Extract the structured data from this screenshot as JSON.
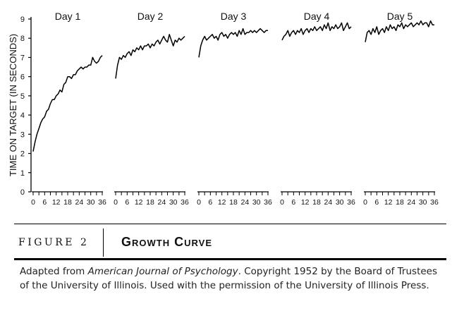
{
  "chart_data": {
    "type": "line",
    "ylabel": "TIME ON TARGET (IN SECONDS)",
    "ylim": [
      0,
      9
    ],
    "yticks": [
      "0",
      "1",
      "2",
      "3",
      "4",
      "5",
      "6",
      "7",
      "8",
      "9"
    ],
    "xticks": [
      "0",
      "6",
      "12",
      "18",
      "24",
      "30",
      "36"
    ],
    "panels": [
      {
        "title": "Day 1",
        "x": [
          0,
          1,
          2,
          3,
          4,
          5,
          6,
          7,
          8,
          9,
          10,
          11,
          12,
          13,
          14,
          15,
          16,
          17,
          18,
          19,
          20,
          21,
          22,
          23,
          24,
          25,
          26,
          27,
          28,
          29,
          30,
          31,
          32,
          33,
          34,
          35,
          36
        ],
        "values": [
          2.1,
          2.6,
          3.0,
          3.3,
          3.6,
          3.8,
          3.9,
          4.2,
          4.3,
          4.6,
          4.8,
          4.8,
          5.0,
          5.1,
          5.3,
          5.2,
          5.6,
          5.7,
          6.0,
          6.0,
          5.9,
          6.1,
          6.1,
          6.3,
          6.4,
          6.5,
          6.4,
          6.5,
          6.5,
          6.6,
          6.6,
          7.0,
          6.8,
          6.7,
          6.8,
          7.0,
          7.1
        ]
      },
      {
        "title": "Day 2",
        "x": [
          0,
          1,
          2,
          3,
          4,
          5,
          6,
          7,
          8,
          9,
          10,
          11,
          12,
          13,
          14,
          15,
          16,
          17,
          18,
          19,
          20,
          21,
          22,
          23,
          24,
          25,
          26,
          27,
          28,
          29,
          30,
          31,
          32,
          33,
          34,
          35,
          36
        ],
        "values": [
          5.9,
          6.6,
          7.0,
          6.9,
          7.1,
          7.0,
          7.2,
          7.3,
          7.1,
          7.4,
          7.3,
          7.5,
          7.4,
          7.6,
          7.4,
          7.6,
          7.6,
          7.7,
          7.5,
          7.7,
          7.6,
          7.8,
          7.9,
          7.7,
          7.9,
          8.1,
          7.9,
          7.8,
          8.2,
          7.9,
          7.6,
          7.9,
          7.8,
          8.0,
          7.9,
          8.0,
          8.1
        ]
      },
      {
        "title": "Day 3",
        "x": [
          0,
          1,
          2,
          3,
          4,
          5,
          6,
          7,
          8,
          9,
          10,
          11,
          12,
          13,
          14,
          15,
          16,
          17,
          18,
          19,
          20,
          21,
          22,
          23,
          24,
          25,
          26,
          27,
          28,
          29,
          30,
          31,
          32,
          33,
          34,
          35,
          36
        ],
        "values": [
          7.0,
          7.6,
          7.9,
          8.1,
          7.9,
          8.0,
          8.1,
          8.2,
          8.0,
          8.1,
          7.9,
          8.2,
          8.3,
          8.1,
          8.2,
          8.0,
          8.2,
          8.3,
          8.2,
          8.3,
          8.1,
          8.4,
          8.2,
          8.5,
          8.2,
          8.3,
          8.3,
          8.4,
          8.3,
          8.4,
          8.3,
          8.4,
          8.5,
          8.4,
          8.3,
          8.4,
          8.4
        ]
      },
      {
        "title": "Day 4",
        "x": [
          0,
          1,
          2,
          3,
          4,
          5,
          6,
          7,
          8,
          9,
          10,
          11,
          12,
          13,
          14,
          15,
          16,
          17,
          18,
          19,
          20,
          21,
          22,
          23,
          24,
          25,
          26,
          27,
          28,
          29,
          30,
          31,
          32,
          33,
          34,
          35,
          36
        ],
        "values": [
          7.9,
          8.1,
          8.2,
          8.4,
          8.1,
          8.3,
          8.4,
          8.2,
          8.4,
          8.3,
          8.5,
          8.2,
          8.4,
          8.5,
          8.3,
          8.5,
          8.4,
          8.6,
          8.4,
          8.5,
          8.6,
          8.4,
          8.7,
          8.5,
          8.8,
          8.4,
          8.6,
          8.5,
          8.7,
          8.5,
          8.6,
          8.8,
          8.4,
          8.6,
          8.8,
          8.5,
          8.6
        ]
      },
      {
        "title": "Day 5",
        "x": [
          0,
          1,
          2,
          3,
          4,
          5,
          6,
          7,
          8,
          9,
          10,
          11,
          12,
          13,
          14,
          15,
          16,
          17,
          18,
          19,
          20,
          21,
          22,
          23,
          24,
          25,
          26,
          27,
          28,
          29,
          30,
          31,
          32,
          33,
          34,
          35,
          36
        ],
        "values": [
          7.8,
          8.3,
          8.4,
          8.2,
          8.5,
          8.3,
          8.6,
          8.2,
          8.4,
          8.5,
          8.3,
          8.6,
          8.4,
          8.7,
          8.5,
          8.6,
          8.4,
          8.7,
          8.6,
          8.8,
          8.5,
          8.7,
          8.6,
          8.7,
          8.8,
          8.6,
          8.7,
          8.8,
          8.7,
          8.9,
          8.7,
          8.8,
          8.8,
          8.6,
          8.9,
          8.7,
          8.7
        ]
      }
    ]
  },
  "caption": {
    "figure_label": "FIGURE 2",
    "title": "Growth Curve",
    "note_prefix": "Adapted from ",
    "note_source": "American Journal of Psychology",
    "note_rest": ". Copyright 1952 by the Board of Trustees of the University of Illinois. Used with the permission of the University of Illinois Press."
  }
}
